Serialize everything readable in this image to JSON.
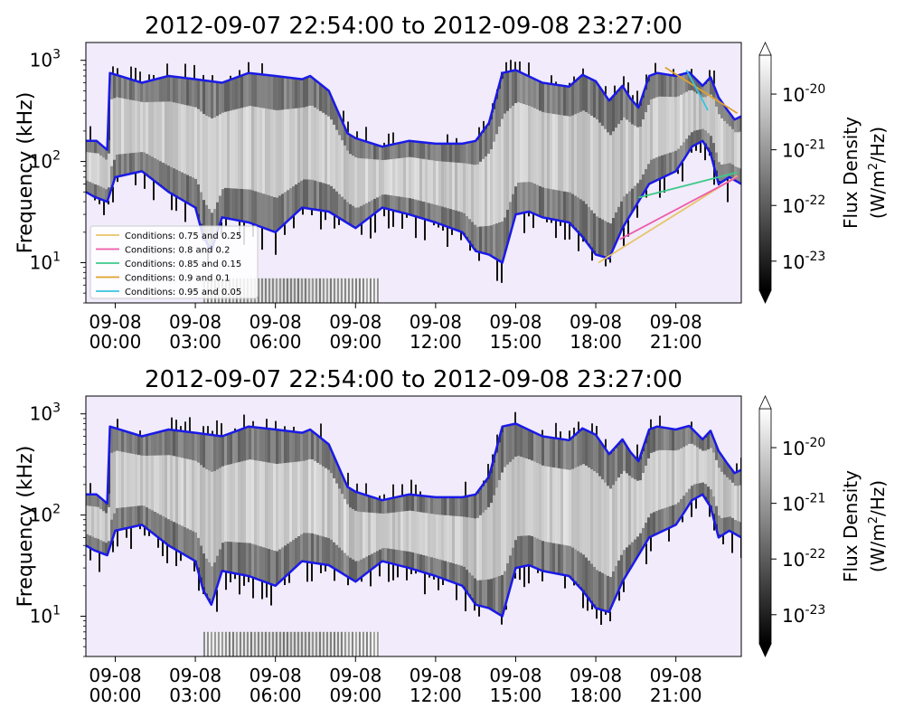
{
  "figure": {
    "background": "#ffffff",
    "plot_background": "#f1ebfb",
    "boundary_color": "#1a1ae6"
  },
  "chart_data": [
    {
      "type": "heatmap",
      "title": "2012-09-07 22:54:00 to 2012-09-08 23:27:00",
      "ylabel": "Frequency (kHz)",
      "xlabel": "",
      "y_scale": "log",
      "ylim": [
        4,
        1500
      ],
      "y_ticks": [
        {
          "value": 10,
          "label": "10",
          "exp": "1"
        },
        {
          "value": 100,
          "label": "10",
          "exp": "2"
        },
        {
          "value": 1000,
          "label": "10",
          "exp": "3"
        }
      ],
      "x_range_hours": [
        -1.1,
        23.45
      ],
      "x_ticks": [
        {
          "value": 0,
          "line1": "09-08",
          "line2": "00:00"
        },
        {
          "value": 3,
          "line1": "09-08",
          "line2": "03:00"
        },
        {
          "value": 6,
          "line1": "09-08",
          "line2": "06:00"
        },
        {
          "value": 9,
          "line1": "09-08",
          "line2": "09:00"
        },
        {
          "value": 12,
          "line1": "09-08",
          "line2": "12:00"
        },
        {
          "value": 15,
          "line1": "09-08",
          "line2": "15:00"
        },
        {
          "value": 18,
          "line1": "09-08",
          "line2": "18:00"
        },
        {
          "value": 21,
          "line1": "09-08",
          "line2": "21:00"
        }
      ],
      "colorbar": {
        "label_line1": "Flux Density",
        "label_line2": "(W/m",
        "label_sup": "2",
        "label_tail": "/Hz)",
        "scale": "log",
        "range": [
          3e-24,
          5e-20
        ],
        "ticks": [
          {
            "value": 1e-20,
            "exp": "-20"
          },
          {
            "value": 1e-21,
            "exp": "-21"
          },
          {
            "value": 1e-22,
            "exp": "-22"
          },
          {
            "value": 1e-23,
            "exp": "-23"
          }
        ],
        "tick_base": "10",
        "extend": "both",
        "colormap": "gray"
      },
      "legend": {
        "position": "lower-left",
        "entries": [
          {
            "label": "Conditions: 0.75 and 0.25",
            "color": "#e8c46a"
          },
          {
            "label": "Conditions: 0.8 and 0.2",
            "color": "#ee5aa8"
          },
          {
            "label": "Conditions: 0.85 and 0.15",
            "color": "#3ec98b"
          },
          {
            "label": "Conditions: 0.9 and 0.1",
            "color": "#e0a22c"
          },
          {
            "label": "Conditions: 0.95 and 0.05",
            "color": "#38c4e0"
          }
        ]
      },
      "condition_lines": [
        {
          "color": "#e8c46a",
          "x": [
            18.1,
            23.3
          ],
          "y": [
            10,
            72
          ]
        },
        {
          "color": "#ee5aa8",
          "x": [
            18.9,
            23.3
          ],
          "y": [
            17,
            70
          ]
        },
        {
          "color": "#3ec98b",
          "x": [
            19.6,
            23.3
          ],
          "y": [
            44,
            78
          ]
        },
        {
          "color": "#e0a22c",
          "x": [
            20.6,
            23.3
          ],
          "y": [
            850,
            300
          ]
        },
        {
          "color": "#38c4e0",
          "x": [
            21.4,
            22.2
          ],
          "y": [
            800,
            320
          ]
        }
      ],
      "upper_boundary": {
        "x": [
          -1.1,
          -0.7,
          -0.3,
          -0.2,
          1,
          2,
          3,
          4,
          5,
          6,
          7,
          7.3,
          8,
          8.5,
          8.7,
          9,
          10,
          11,
          12,
          13,
          13.5,
          14,
          14.5,
          15,
          16,
          17,
          17.5,
          18,
          18.5,
          19,
          19.3,
          19.6,
          20,
          20.3,
          21,
          21.5,
          22,
          22.3,
          22.6,
          22.9,
          23.2,
          23.45
        ],
        "y": [
          160,
          160,
          130,
          750,
          600,
          700,
          650,
          600,
          750,
          700,
          650,
          700,
          500,
          250,
          190,
          170,
          140,
          160,
          150,
          150,
          160,
          240,
          750,
          800,
          600,
          550,
          720,
          620,
          400,
          560,
          420,
          340,
          700,
          750,
          700,
          760,
          560,
          680,
          430,
          330,
          260,
          280
        ]
      },
      "lower_boundary": {
        "x": [
          -1.1,
          -0.8,
          -0.3,
          0,
          1,
          2,
          3,
          3.3,
          3.6,
          4,
          5,
          6,
          7,
          8,
          9,
          10,
          11,
          12,
          13,
          13.5,
          14,
          14.5,
          15,
          15.5,
          16,
          17,
          17.5,
          18,
          18.5,
          19,
          20,
          21,
          21.3,
          21.6,
          22,
          22.3,
          22.6,
          23,
          23.45
        ],
        "y": [
          50,
          45,
          40,
          70,
          80,
          50,
          35,
          18,
          13,
          28,
          25,
          20,
          35,
          32,
          22,
          35,
          30,
          25,
          20,
          13,
          12,
          10,
          30,
          32,
          28,
          25,
          18,
          12,
          11,
          22,
          60,
          80,
          105,
          140,
          160,
          120,
          60,
          70,
          60
        ]
      },
      "low_bands": [
        {
          "x0": 3.3,
          "x1": 9.9,
          "y0": 4,
          "y1": 7
        }
      ]
    },
    {
      "type": "heatmap",
      "title": "2012-09-07 22:54:00 to 2012-09-08 23:27:00",
      "ylabel": "Frequency (kHz)",
      "xlabel": "",
      "y_scale": "log",
      "ylim": [
        4,
        1500
      ],
      "y_ticks": [
        {
          "value": 10,
          "label": "10",
          "exp": "1"
        },
        {
          "value": 100,
          "label": "10",
          "exp": "2"
        },
        {
          "value": 1000,
          "label": "10",
          "exp": "3"
        }
      ],
      "x_range_hours": [
        -1.1,
        23.45
      ],
      "x_ticks": [
        {
          "value": 0,
          "line1": "09-08",
          "line2": "00:00"
        },
        {
          "value": 3,
          "line1": "09-08",
          "line2": "03:00"
        },
        {
          "value": 6,
          "line1": "09-08",
          "line2": "06:00"
        },
        {
          "value": 9,
          "line1": "09-08",
          "line2": "09:00"
        },
        {
          "value": 12,
          "line1": "09-08",
          "line2": "12:00"
        },
        {
          "value": 15,
          "line1": "09-08",
          "line2": "15:00"
        },
        {
          "value": 18,
          "line1": "09-08",
          "line2": "18:00"
        },
        {
          "value": 21,
          "line1": "09-08",
          "line2": "21:00"
        }
      ],
      "colorbar": {
        "label_line1": "Flux Density",
        "label_line2": "(W/m",
        "label_sup": "2",
        "label_tail": "/Hz)",
        "scale": "log",
        "range": [
          3e-24,
          5e-20
        ],
        "ticks": [
          {
            "value": 1e-20,
            "exp": "-20"
          },
          {
            "value": 1e-21,
            "exp": "-21"
          },
          {
            "value": 1e-22,
            "exp": "-22"
          },
          {
            "value": 1e-23,
            "exp": "-23"
          }
        ],
        "tick_base": "10",
        "extend": "both",
        "colormap": "gray"
      },
      "legend": null,
      "condition_lines": [],
      "upper_boundary": {
        "x": [
          -1.1,
          -0.7,
          -0.3,
          -0.2,
          1,
          2,
          3,
          4,
          5,
          6,
          7,
          7.3,
          8,
          8.5,
          8.7,
          9,
          10,
          11,
          12,
          13,
          13.5,
          14,
          14.5,
          15,
          16,
          17,
          17.5,
          18,
          18.5,
          19,
          19.3,
          19.6,
          20,
          20.3,
          21,
          21.5,
          22,
          22.3,
          22.6,
          22.9,
          23.2,
          23.45
        ],
        "y": [
          160,
          160,
          130,
          750,
          600,
          700,
          650,
          600,
          750,
          700,
          650,
          700,
          500,
          250,
          190,
          170,
          140,
          160,
          150,
          150,
          160,
          240,
          750,
          800,
          600,
          550,
          720,
          620,
          400,
          560,
          420,
          340,
          700,
          750,
          700,
          760,
          560,
          680,
          430,
          330,
          260,
          280
        ]
      },
      "lower_boundary": {
        "x": [
          -1.1,
          -0.8,
          -0.3,
          0,
          1,
          2,
          3,
          3.3,
          3.6,
          4,
          5,
          6,
          7,
          8,
          9,
          10,
          11,
          12,
          13,
          13.5,
          14,
          14.5,
          15,
          15.5,
          16,
          17,
          17.5,
          18,
          18.5,
          19,
          20,
          21,
          21.3,
          21.6,
          22,
          22.3,
          22.6,
          23,
          23.45
        ],
        "y": [
          50,
          45,
          40,
          70,
          80,
          50,
          35,
          18,
          13,
          28,
          25,
          20,
          35,
          32,
          22,
          35,
          30,
          25,
          20,
          13,
          12,
          10,
          30,
          32,
          28,
          25,
          18,
          12,
          11,
          22,
          60,
          80,
          105,
          140,
          160,
          120,
          60,
          70,
          60
        ]
      },
      "low_bands": [
        {
          "x0": 3.3,
          "x1": 9.9,
          "y0": 4,
          "y1": 7
        }
      ]
    }
  ]
}
